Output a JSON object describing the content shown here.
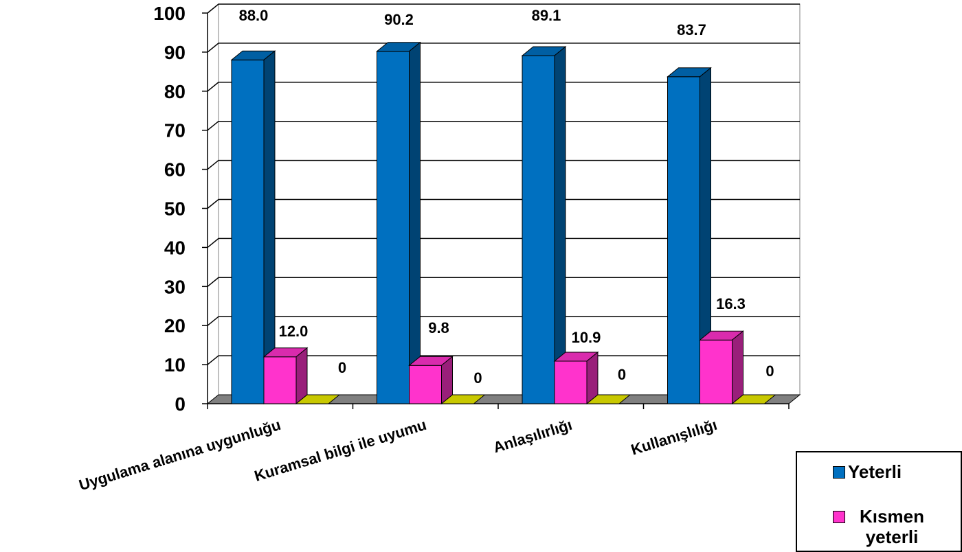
{
  "chart_data": {
    "type": "bar",
    "categories": [
      "Uygulama alanına uygunluğu",
      "Kuramsal bilgi ile uyumu",
      "Anlaşılırlığı",
      "Kullanışlılığı"
    ],
    "series": [
      {
        "name": "Yeterli",
        "values": [
          88.0,
          90.2,
          89.1,
          83.7
        ],
        "labels": [
          "88.0",
          "90.2",
          "89.1",
          "83.7"
        ],
        "color": "#0070C0"
      },
      {
        "name": "Kısmen yeterli",
        "values": [
          12.0,
          9.8,
          10.9,
          16.3
        ],
        "labels": [
          "12.0",
          "9.8",
          "10.9",
          "16.3"
        ],
        "color": "#FF33CC"
      },
      {
        "name": "",
        "values": [
          0,
          0,
          0,
          0
        ],
        "labels": [
          "0",
          "0",
          "0",
          "0"
        ],
        "color": "#C8C800"
      }
    ],
    "yticks": [
      "0",
      "10",
      "20",
      "30",
      "40",
      "50",
      "60",
      "70",
      "80",
      "90",
      "100"
    ],
    "ylim": [
      0,
      100
    ],
    "grid": true,
    "legend_position": "bottom-right",
    "three_d": true
  },
  "legend": {
    "items": [
      {
        "label": "Yeterli",
        "color": "#0070C0"
      },
      {
        "label": "Kısmen yeterli",
        "color": "#FF33CC"
      }
    ]
  }
}
